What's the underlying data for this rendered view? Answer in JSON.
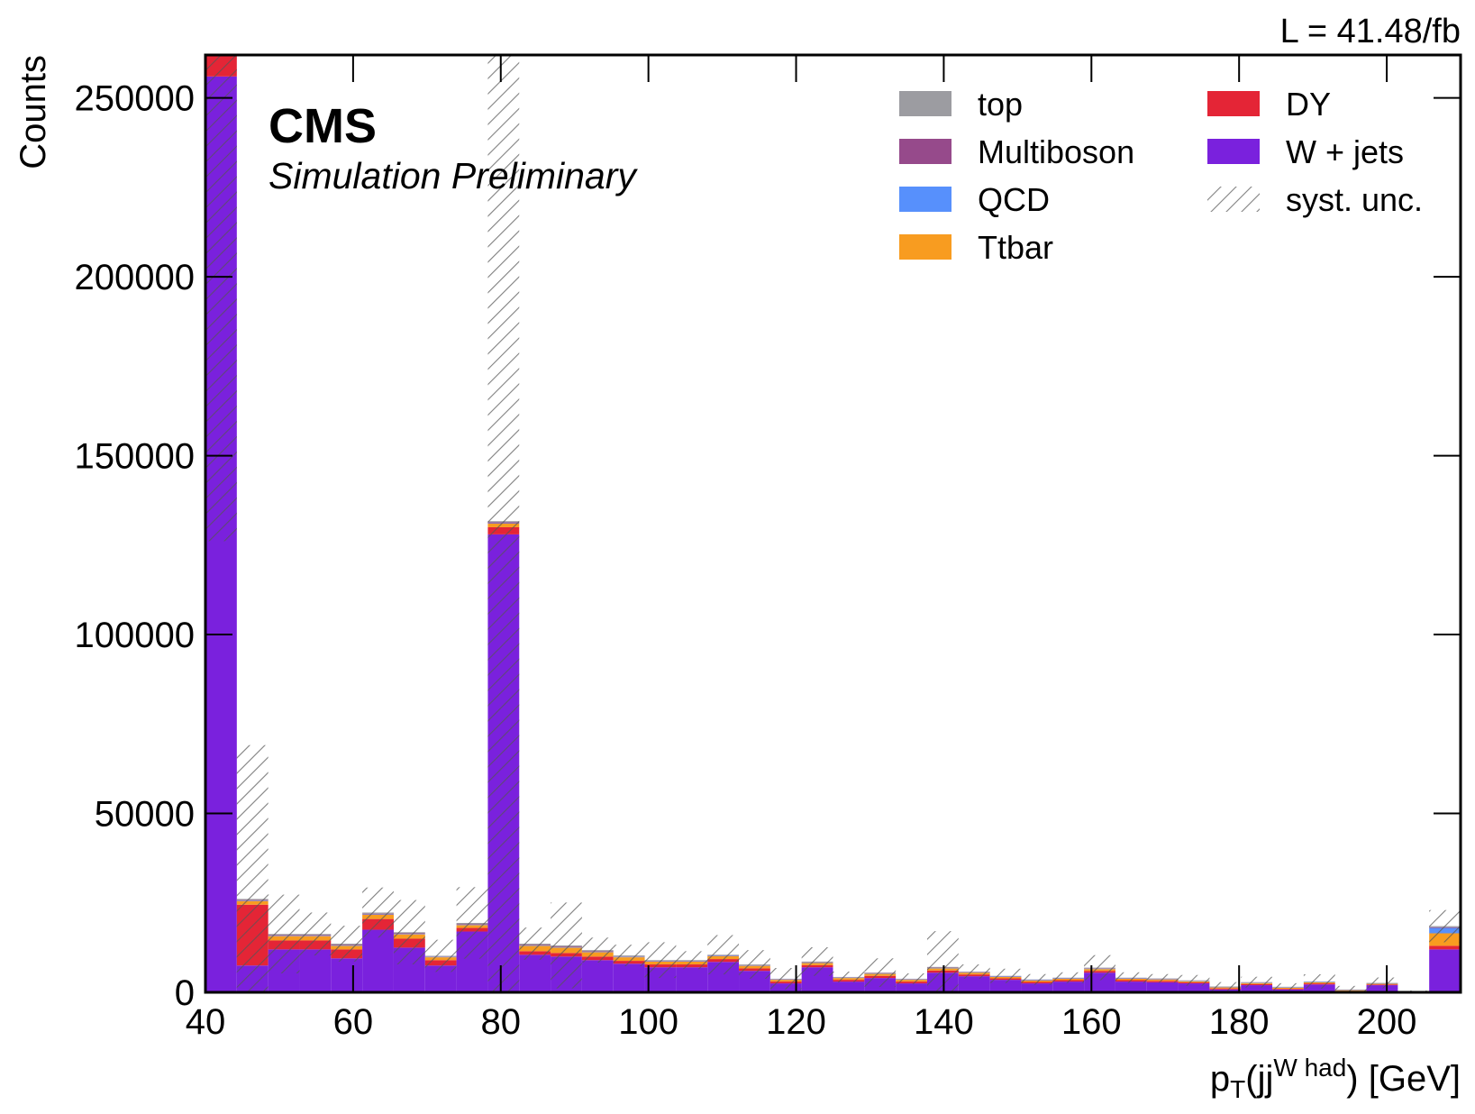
{
  "chart_data": {
    "type": "stacked_histogram",
    "lumi_label": "L = 41.48/fb",
    "experiment": "CMS",
    "subtitle": "Simulation Preliminary",
    "y_label": "Counts",
    "x_label": [
      "p",
      "T",
      "(jj",
      "W had",
      ") [GeV]"
    ],
    "bins": [
      40,
      44.25,
      48.5,
      52.75,
      57,
      61.25,
      65.5,
      69.75,
      74,
      78.25,
      82.5,
      86.75,
      91,
      95.25,
      99.5,
      103.75,
      108,
      112.25,
      116.5,
      120.75,
      125,
      129.25,
      133.5,
      137.75,
      142,
      146.25,
      150.5,
      154.75,
      159,
      163.25,
      167.5,
      171.75,
      176,
      180.25,
      184.5,
      188.75,
      193,
      197.25,
      201.5,
      205.75,
      210
    ],
    "series": [
      {
        "name": "top",
        "color": "#9c9ca1",
        "values": [
          300,
          300,
          300,
          300,
          300,
          300,
          300,
          200,
          300,
          300,
          300,
          300,
          300,
          300,
          200,
          200,
          200,
          200,
          100,
          200,
          100,
          100,
          100,
          200,
          100,
          100,
          100,
          100,
          200,
          100,
          100,
          100,
          100,
          100,
          100,
          100,
          50,
          100,
          0,
          300
        ]
      },
      {
        "name": "Multiboson",
        "color": "#964a8b",
        "values": [
          200,
          200,
          200,
          200,
          200,
          200,
          200,
          100,
          200,
          300,
          200,
          200,
          200,
          100,
          100,
          100,
          100,
          100,
          100,
          100,
          100,
          100,
          100,
          100,
          100,
          100,
          100,
          100,
          100,
          100,
          100,
          50,
          50,
          50,
          50,
          50,
          50,
          50,
          0,
          200
        ]
      },
      {
        "name": "QCD",
        "color": "#5790fc",
        "values": [
          100,
          100,
          100,
          100,
          100,
          100,
          100,
          100,
          100,
          100,
          100,
          100,
          100,
          100,
          100,
          100,
          100,
          100,
          100,
          100,
          100,
          100,
          100,
          100,
          100,
          100,
          100,
          100,
          100,
          100,
          100,
          100,
          100,
          100,
          100,
          100,
          100,
          100,
          0,
          1500
        ]
      },
      {
        "name": "Ttbar",
        "color": "#f89c20",
        "values": [
          500,
          1000,
          1200,
          1200,
          1000,
          1200,
          1200,
          800,
          800,
          1000,
          1500,
          1500,
          1200,
          1000,
          800,
          800,
          800,
          700,
          500,
          600,
          500,
          600,
          500,
          600,
          500,
          400,
          400,
          400,
          500,
          400,
          400,
          300,
          300,
          300,
          300,
          300,
          200,
          200,
          0,
          3500
        ]
      },
      {
        "name": "DY",
        "color": "#e42536",
        "values": [
          6000,
          17000,
          2500,
          2500,
          2500,
          3000,
          2500,
          1500,
          1000,
          2000,
          1000,
          1000,
          1000,
          800,
          800,
          800,
          800,
          700,
          500,
          600,
          500,
          600,
          500,
          600,
          500,
          400,
          400,
          400,
          500,
          400,
          400,
          300,
          300,
          300,
          200,
          300,
          200,
          200,
          0,
          1000
        ]
      },
      {
        "name": "W + jets",
        "color": "#7a21dd",
        "values": [
          256000,
          7500,
          12000,
          12000,
          9500,
          17500,
          12500,
          7500,
          17000,
          128000,
          10500,
          10000,
          9000,
          8000,
          7000,
          7000,
          8500,
          6000,
          2500,
          7000,
          3000,
          4000,
          2500,
          5500,
          4500,
          3500,
          2500,
          3000,
          5500,
          3000,
          2800,
          2500,
          800,
          2000,
          800,
          2200,
          200,
          2000,
          0,
          12000
        ]
      }
    ],
    "syst_unc": {
      "name": "syst. unc.",
      "values": [
        137000,
        43000,
        11000,
        6000,
        5000,
        7000,
        9000,
        4500,
        10000,
        135000,
        4500,
        12000,
        3500,
        3000,
        5000,
        2500,
        5500,
        4000,
        3000,
        4000,
        1500,
        4000,
        1500,
        10000,
        2000,
        2000,
        1500,
        1500,
        3500,
        1500,
        1200,
        1500,
        1200,
        1500,
        1000,
        2000,
        1000,
        1500,
        500,
        4500
      ]
    },
    "xlim": [
      40,
      210
    ],
    "ylim": [
      0,
      262000
    ],
    "xticks": [
      40,
      60,
      80,
      100,
      120,
      140,
      160,
      180,
      200
    ],
    "yticks": [
      0,
      50000,
      100000,
      150000,
      200000,
      250000
    ]
  }
}
